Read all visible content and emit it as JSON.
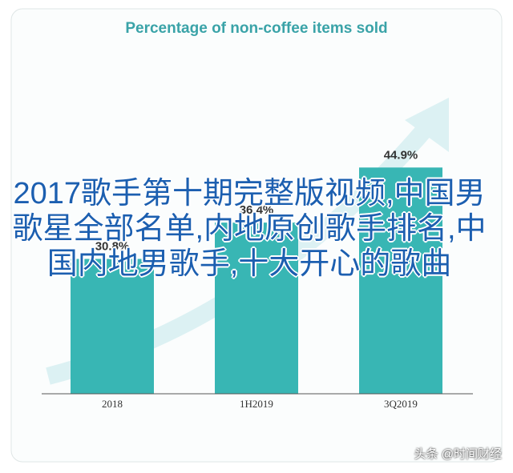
{
  "chart_data": {
    "type": "bar",
    "title": "Percentage of non-coffee items sold",
    "categories": [
      "2018",
      "1H2019",
      "3Q2019"
    ],
    "values": [
      30.8,
      36.4,
      44.9
    ],
    "value_labels": [
      "30.8%",
      "36.4%",
      "44.9%"
    ],
    "color": "#38b6b4",
    "ylim": [
      10,
      50
    ]
  },
  "overlay_text": "2017歌手第十期完整版视频,中国男歌星全部名单,内地原创歌手排名,中国内地男歌手,十大开心的歌曲",
  "watermark": "头条 @时间财经"
}
